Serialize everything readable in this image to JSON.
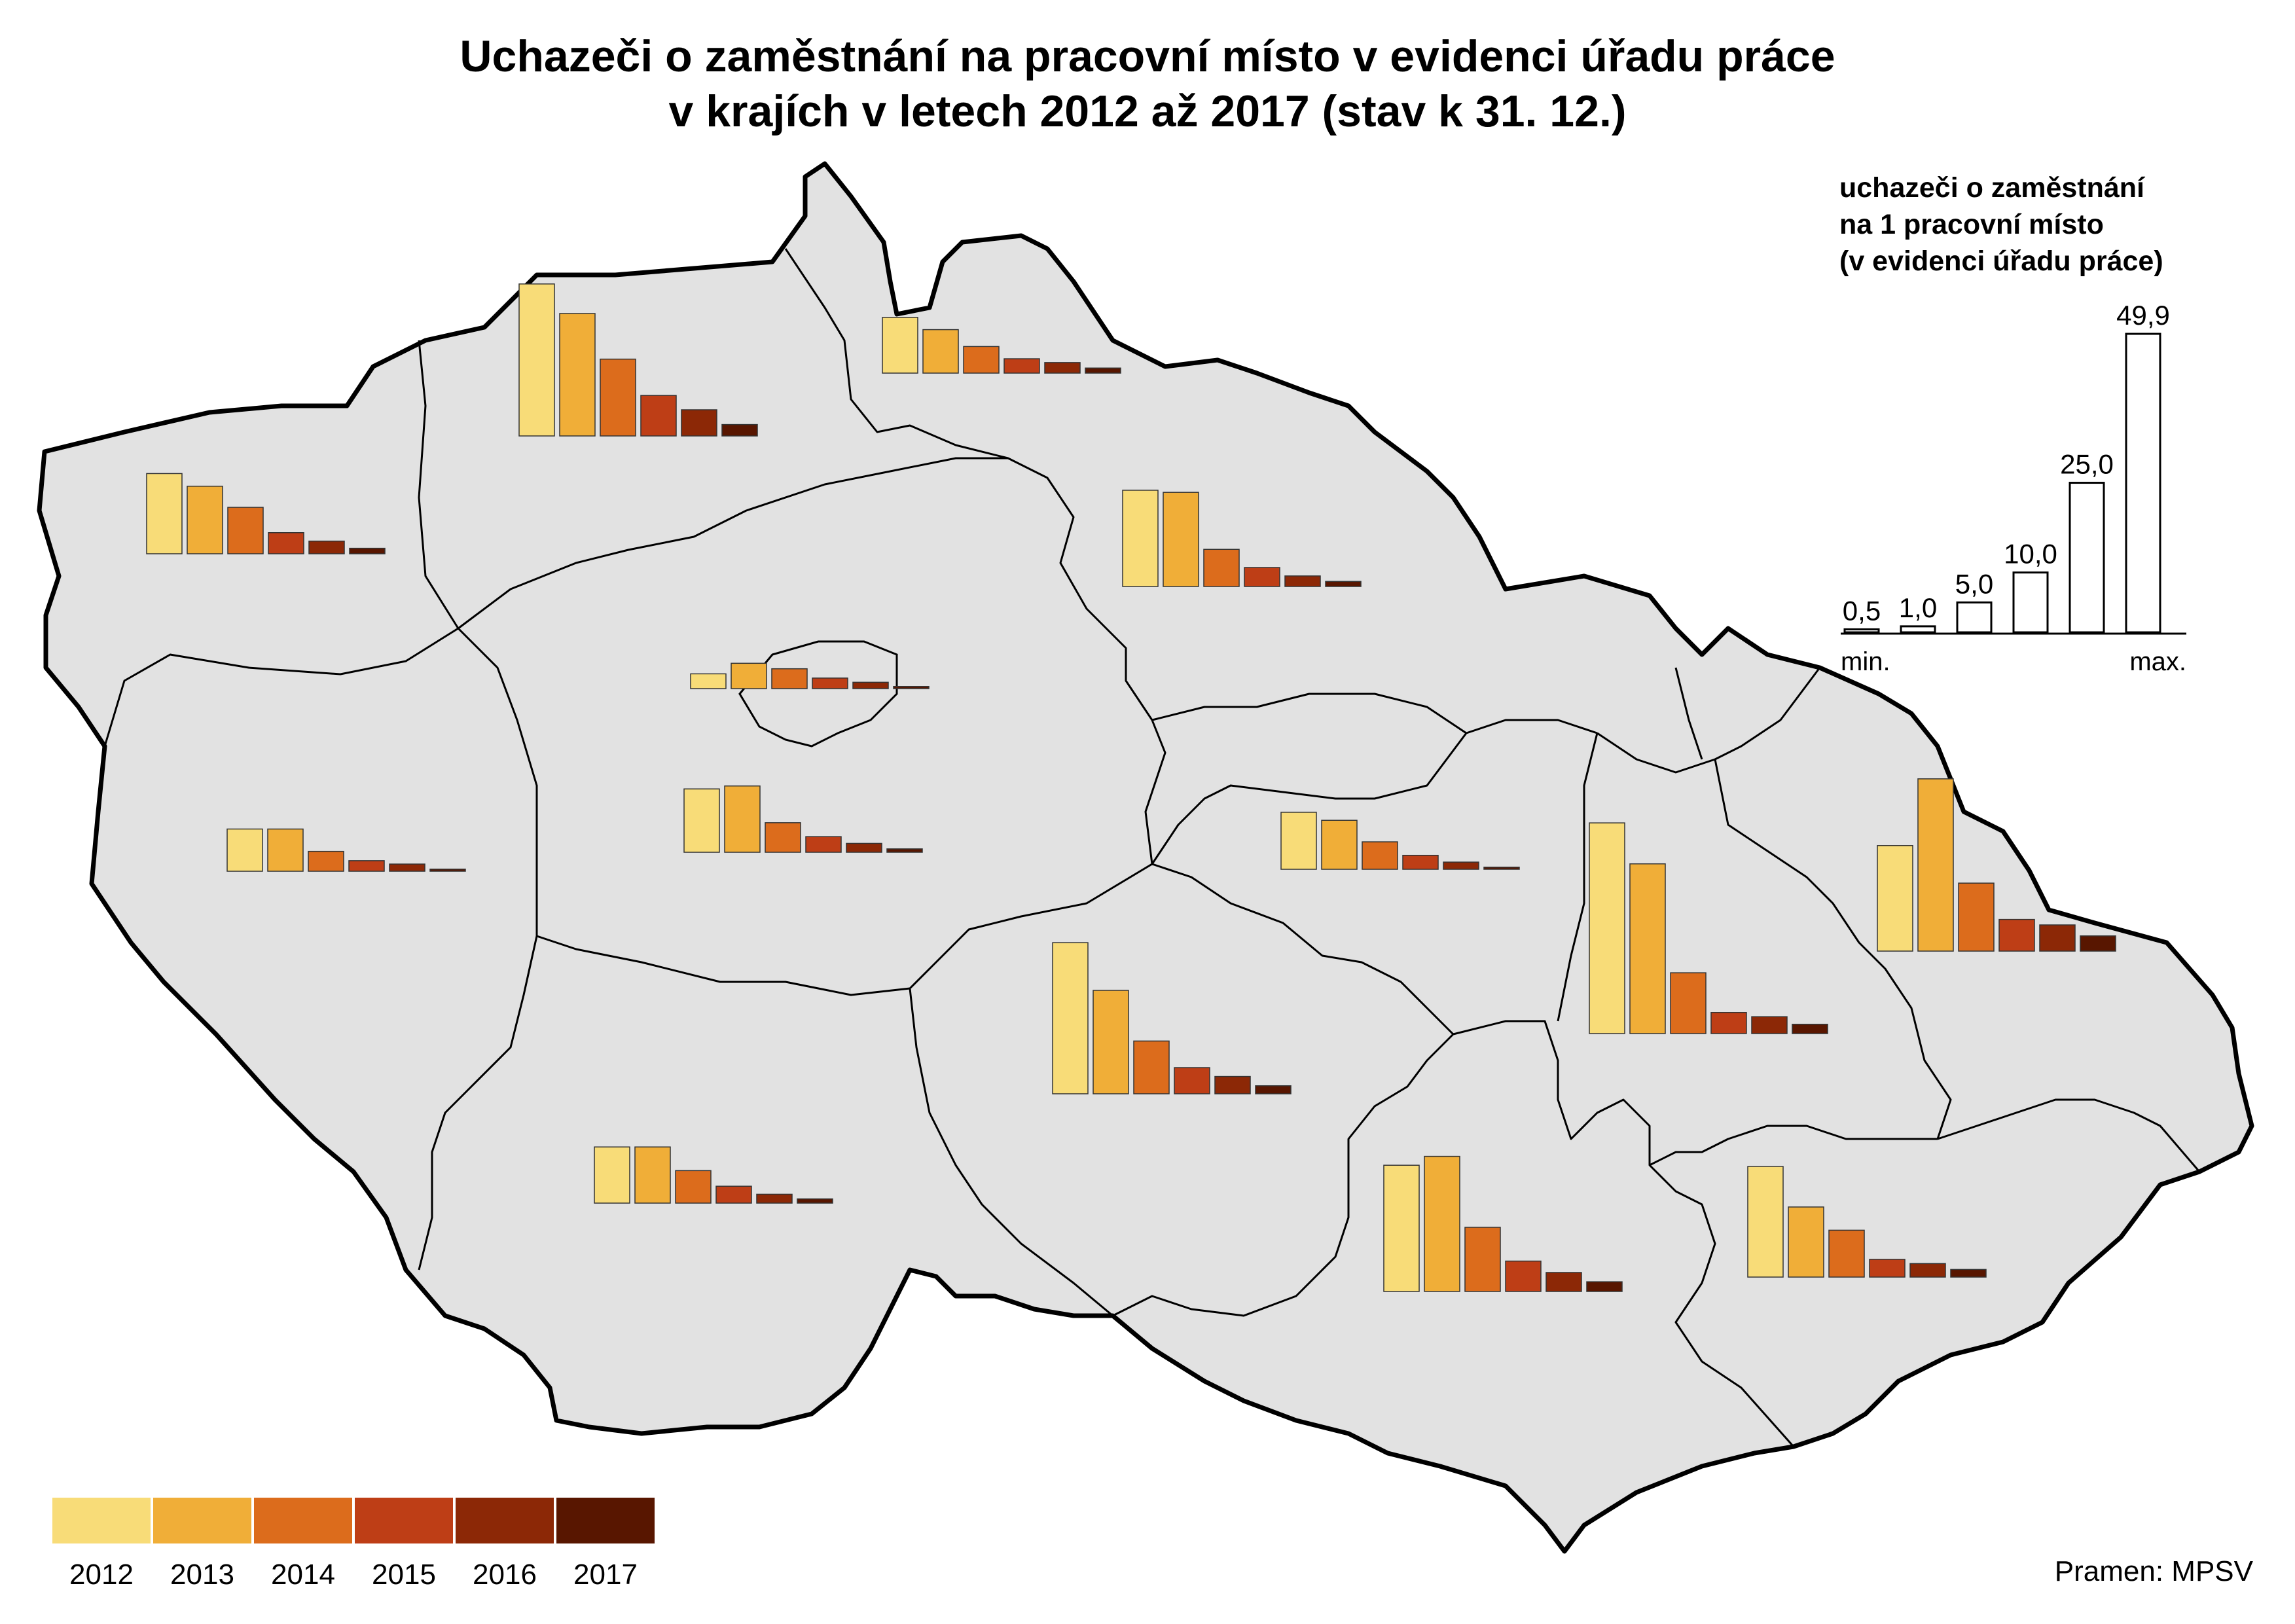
{
  "title": {
    "line1": "Uchazeči o zaměstnání na pracovní místo v evidenci úřadu práce",
    "line2": "v krajích v letech 2012 až 2017 (stav k 31. 12.)"
  },
  "scale_legend": {
    "title_line1": "uchazeči o zaměstnání",
    "title_line2": "na 1 pracovní místo",
    "title_line3": "(v evidenci úřadu práce)",
    "values": [
      "0,5",
      "1,0",
      "5,0",
      "10,0",
      "25,0",
      "49,9"
    ],
    "min_label": "min.",
    "max_label": "max."
  },
  "year_legend": {
    "years": [
      "2012",
      "2013",
      "2014",
      "2015",
      "2016",
      "2017"
    ],
    "colors": [
      "#F8DC78",
      "#F0AE38",
      "#DC6C1C",
      "#BE3E16",
      "#8C2806",
      "#581600"
    ]
  },
  "source": "Pramen: MPSV",
  "map_colors": {
    "land": "#E2E2E2",
    "border": "#000000"
  },
  "chart_data": {
    "type": "bar",
    "categories": [
      "2012",
      "2013",
      "2014",
      "2015",
      "2016",
      "2017"
    ],
    "unit": "uchazeči o zaměstnání na 1 pracovní místo",
    "series": [
      {
        "values": [
          19.0,
          16.0,
          11.0,
          5.0,
          3.0,
          1.3
        ]
      },
      {
        "values": [
          36.0,
          29.0,
          18.2,
          9.6,
          6.2,
          2.7
        ]
      },
      {
        "values": [
          13.2,
          10.3,
          6.3,
          3.4,
          2.5,
          1.2
        ]
      },
      {
        "values": [
          22.8,
          22.3,
          8.8,
          4.5,
          2.5,
          1.2
        ]
      },
      {
        "values": [
          3.5,
          6.0,
          4.7,
          2.5,
          1.5,
          0.5
        ]
      },
      {
        "values": [
          15.0,
          15.7,
          7.0,
          3.7,
          2.1,
          0.8
        ]
      },
      {
        "values": [
          10.0,
          10.0,
          4.7,
          2.5,
          1.7,
          0.5
        ]
      },
      {
        "values": [
          13.3,
          13.3,
          7.7,
          4.0,
          2.1,
          1.0
        ]
      },
      {
        "values": [
          13.5,
          11.6,
          6.5,
          3.3,
          1.7,
          0.5
        ]
      },
      {
        "values": [
          35.8,
          24.5,
          12.5,
          6.2,
          4.1,
          1.9
        ]
      },
      {
        "values": [
          49.9,
          40.2,
          14.4,
          5.0,
          4.0,
          2.2
        ]
      },
      {
        "values": [
          25.0,
          40.8,
          16.1,
          7.5,
          6.2,
          3.6
        ]
      },
      {
        "values": [
          29.9,
          32.0,
          15.2,
          7.2,
          4.5,
          2.3
        ]
      },
      {
        "values": [
          26.2,
          16.6,
          11.1,
          4.2,
          3.2,
          1.8
        ]
      }
    ]
  }
}
